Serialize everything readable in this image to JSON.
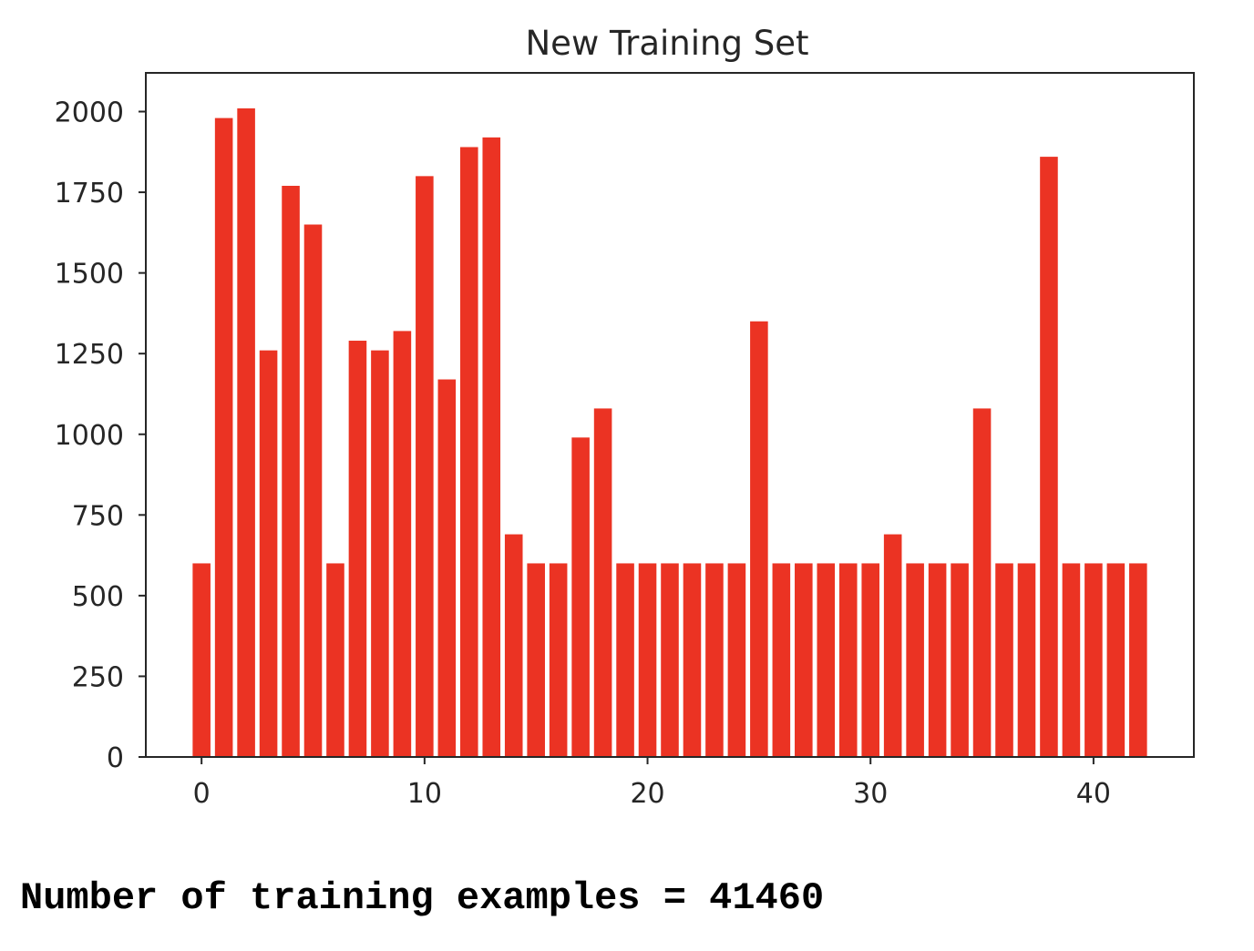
{
  "colors": {
    "bar": "#eb3323",
    "axis": "#262626",
    "background": "#ffffff"
  },
  "chart_data": {
    "type": "bar",
    "title": "New Training Set",
    "xlabel": "",
    "ylabel": "",
    "x": [
      0,
      1,
      2,
      3,
      4,
      5,
      6,
      7,
      8,
      9,
      10,
      11,
      12,
      13,
      14,
      15,
      16,
      17,
      18,
      19,
      20,
      21,
      22,
      23,
      24,
      25,
      26,
      27,
      28,
      29,
      30,
      31,
      32,
      33,
      34,
      35,
      36,
      37,
      38,
      39,
      40,
      41,
      42
    ],
    "values": [
      600,
      1980,
      2010,
      1260,
      1770,
      1650,
      600,
      1290,
      1260,
      1320,
      1800,
      1170,
      1890,
      1920,
      690,
      600,
      600,
      990,
      1080,
      600,
      600,
      600,
      600,
      600,
      600,
      1350,
      600,
      600,
      600,
      600,
      600,
      690,
      600,
      600,
      600,
      1080,
      600,
      600,
      1860,
      600,
      600,
      600,
      600
    ],
    "xlim": [
      -2.5,
      44.5
    ],
    "ylim": [
      0,
      2120
    ],
    "xticks": [
      0,
      10,
      20,
      30,
      40
    ],
    "yticks": [
      0,
      250,
      500,
      750,
      1000,
      1250,
      1500,
      1750,
      2000
    ],
    "grid": false,
    "legend": "none"
  },
  "output": {
    "caption": "Number of training examples = 41460"
  }
}
